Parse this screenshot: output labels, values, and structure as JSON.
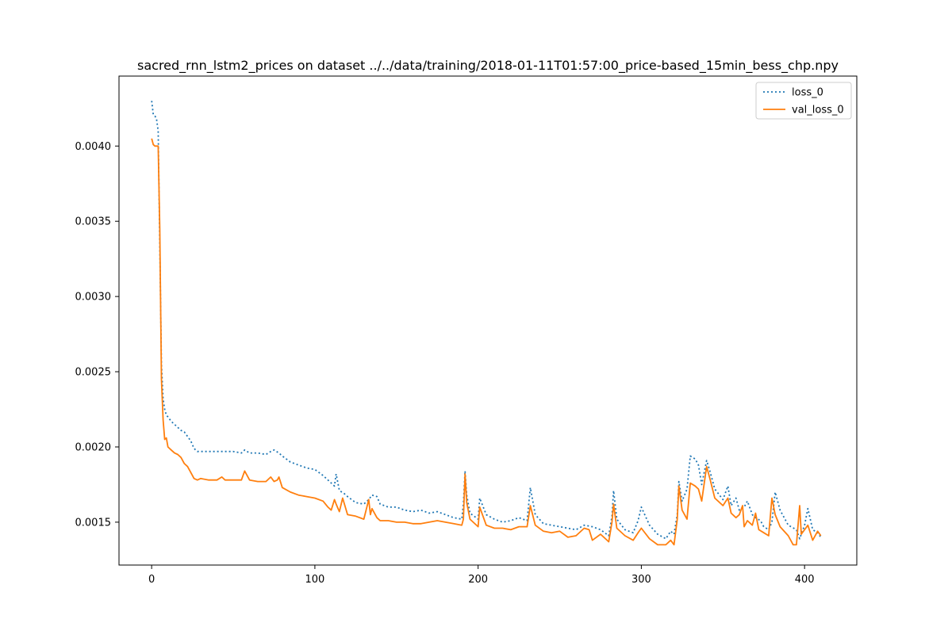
{
  "chart_data": {
    "type": "line",
    "title": "sacred_rnn_lstm2_prices on dataset ../../data/training/2018-01-11T01:57:00_price-based_15min_bess_chp.npy",
    "xlabel": "",
    "ylabel": "",
    "xlim": [
      -20,
      432
    ],
    "ylim": [
      0.001215,
      0.004465
    ],
    "xticks": [
      0,
      100,
      200,
      300,
      400
    ],
    "xtick_labels": [
      "0",
      "100",
      "200",
      "300",
      "400"
    ],
    "yticks": [
      0.0015,
      0.002,
      0.0025,
      0.003,
      0.0035,
      0.004
    ],
    "ytick_labels": [
      "0.0015",
      "0.0020",
      "0.0025",
      "0.0030",
      "0.0035",
      "0.0040"
    ],
    "grid": false,
    "legend_position": "top-right",
    "series": [
      {
        "name": "loss_0",
        "color": "#1f77b4",
        "style": "dotted",
        "x": [
          0,
          1,
          2,
          3,
          4,
          5,
          6,
          7,
          8,
          9,
          10,
          12,
          14,
          16,
          18,
          20,
          22,
          24,
          26,
          28,
          30,
          35,
          40,
          45,
          50,
          55,
          57,
          60,
          65,
          70,
          73,
          75,
          78,
          80,
          85,
          90,
          95,
          100,
          105,
          108,
          110,
          112,
          113,
          115,
          118,
          120,
          125,
          130,
          133,
          135,
          138,
          140,
          145,
          150,
          155,
          160,
          165,
          170,
          175,
          180,
          185,
          190,
          191,
          192,
          193,
          195,
          200,
          201,
          205,
          210,
          215,
          220,
          225,
          230,
          232,
          235,
          240,
          245,
          250,
          255,
          260,
          265,
          270,
          275,
          280,
          282,
          283,
          285,
          290,
          295,
          298,
          300,
          305,
          310,
          315,
          318,
          320,
          322,
          323,
          325,
          328,
          330,
          333,
          335,
          337,
          340,
          342,
          345,
          350,
          353,
          355,
          358,
          360,
          363,
          365,
          368,
          370,
          373,
          375,
          378,
          380,
          382,
          385,
          390,
          395,
          397,
          400,
          402,
          405,
          408,
          410
        ],
        "y": [
          0.0043,
          0.00421,
          0.0042,
          0.00418,
          0.0041,
          0.00335,
          0.00255,
          0.00232,
          0.00225,
          0.00221,
          0.0022,
          0.00217,
          0.00215,
          0.00213,
          0.00211,
          0.0021,
          0.00207,
          0.00204,
          0.00199,
          0.00197,
          0.00197,
          0.00197,
          0.00197,
          0.00197,
          0.00197,
          0.00196,
          0.00198,
          0.00196,
          0.00196,
          0.00195,
          0.00197,
          0.00198,
          0.00196,
          0.00194,
          0.0019,
          0.00188,
          0.00186,
          0.00185,
          0.00181,
          0.00178,
          0.00176,
          0.00174,
          0.00182,
          0.00171,
          0.00169,
          0.00167,
          0.00163,
          0.00162,
          0.00165,
          0.00168,
          0.00167,
          0.00162,
          0.0016,
          0.0016,
          0.00158,
          0.00157,
          0.00158,
          0.00156,
          0.00157,
          0.00155,
          0.00153,
          0.00152,
          0.00162,
          0.00184,
          0.00168,
          0.00156,
          0.00152,
          0.00166,
          0.00155,
          0.00152,
          0.0015,
          0.00151,
          0.00153,
          0.00151,
          0.00173,
          0.00155,
          0.00149,
          0.00148,
          0.00147,
          0.00146,
          0.00145,
          0.00148,
          0.00147,
          0.00145,
          0.00141,
          0.00154,
          0.00171,
          0.00152,
          0.00145,
          0.00143,
          0.00151,
          0.0016,
          0.00148,
          0.00142,
          0.00139,
          0.00144,
          0.00142,
          0.00155,
          0.00177,
          0.00164,
          0.00172,
          0.00194,
          0.00192,
          0.00188,
          0.00175,
          0.00191,
          0.00184,
          0.00172,
          0.00165,
          0.00174,
          0.00161,
          0.00166,
          0.00158,
          0.0016,
          0.00164,
          0.00155,
          0.00153,
          0.00151,
          0.00147,
          0.00145,
          0.0015,
          0.0017,
          0.00158,
          0.00148,
          0.00145,
          0.00139,
          0.00148,
          0.00159,
          0.00145,
          0.00143,
          0.0014
        ]
      },
      {
        "name": "val_loss_0",
        "color": "#ff7f0e",
        "style": "solid",
        "x": [
          0,
          1,
          2,
          3,
          4,
          5,
          6,
          7,
          8,
          9,
          10,
          12,
          14,
          16,
          18,
          20,
          22,
          24,
          26,
          28,
          30,
          35,
          40,
          43,
          45,
          50,
          55,
          57,
          60,
          65,
          70,
          73,
          75,
          77,
          78,
          80,
          85,
          90,
          95,
          100,
          105,
          108,
          110,
          112,
          113,
          115,
          117,
          120,
          125,
          130,
          133,
          134,
          135,
          138,
          140,
          145,
          150,
          155,
          160,
          165,
          170,
          175,
          180,
          185,
          190,
          191,
          192,
          193,
          195,
          200,
          201,
          205,
          210,
          215,
          220,
          225,
          230,
          232,
          235,
          240,
          245,
          250,
          255,
          260,
          265,
          268,
          270,
          275,
          280,
          282,
          283,
          285,
          290,
          295,
          298,
          300,
          305,
          310,
          315,
          318,
          320,
          322,
          323,
          325,
          328,
          330,
          333,
          335,
          337,
          340,
          342,
          345,
          350,
          353,
          355,
          358,
          360,
          362,
          363,
          365,
          368,
          370,
          372,
          375,
          378,
          380,
          382,
          385,
          390,
          393,
          395,
          397,
          398,
          400,
          402,
          405,
          408,
          410
        ],
        "y": [
          0.00405,
          0.00401,
          0.004,
          0.004,
          0.004,
          0.00345,
          0.00245,
          0.00218,
          0.00205,
          0.00206,
          0.002,
          0.00198,
          0.00196,
          0.00195,
          0.00193,
          0.00189,
          0.00187,
          0.00183,
          0.00179,
          0.00178,
          0.00179,
          0.00178,
          0.00178,
          0.0018,
          0.00178,
          0.00178,
          0.00178,
          0.00184,
          0.00178,
          0.00177,
          0.00177,
          0.0018,
          0.00177,
          0.00178,
          0.0018,
          0.00173,
          0.0017,
          0.00168,
          0.00167,
          0.00166,
          0.00164,
          0.0016,
          0.00158,
          0.00165,
          0.00162,
          0.00157,
          0.00166,
          0.00155,
          0.00154,
          0.00152,
          0.00165,
          0.00155,
          0.00159,
          0.00153,
          0.00151,
          0.00151,
          0.0015,
          0.0015,
          0.00149,
          0.00149,
          0.0015,
          0.00151,
          0.0015,
          0.00149,
          0.00148,
          0.00152,
          0.00182,
          0.00163,
          0.00152,
          0.00147,
          0.0016,
          0.00148,
          0.00146,
          0.00146,
          0.00145,
          0.00147,
          0.00147,
          0.00161,
          0.00148,
          0.00144,
          0.00143,
          0.00144,
          0.0014,
          0.00141,
          0.00146,
          0.00145,
          0.00138,
          0.00142,
          0.00137,
          0.0015,
          0.00162,
          0.00146,
          0.00141,
          0.00138,
          0.00143,
          0.00146,
          0.00139,
          0.00135,
          0.00135,
          0.00138,
          0.00135,
          0.00152,
          0.00174,
          0.00158,
          0.00152,
          0.00176,
          0.00174,
          0.00172,
          0.00164,
          0.00187,
          0.00179,
          0.00166,
          0.00161,
          0.00166,
          0.00156,
          0.00153,
          0.00155,
          0.00161,
          0.00147,
          0.00151,
          0.00148,
          0.00156,
          0.00145,
          0.00143,
          0.00141,
          0.00166,
          0.00155,
          0.00147,
          0.00141,
          0.00135,
          0.00135,
          0.00161,
          0.00142,
          0.00145,
          0.00148,
          0.00138,
          0.00144,
          0.00141
        ]
      }
    ]
  }
}
